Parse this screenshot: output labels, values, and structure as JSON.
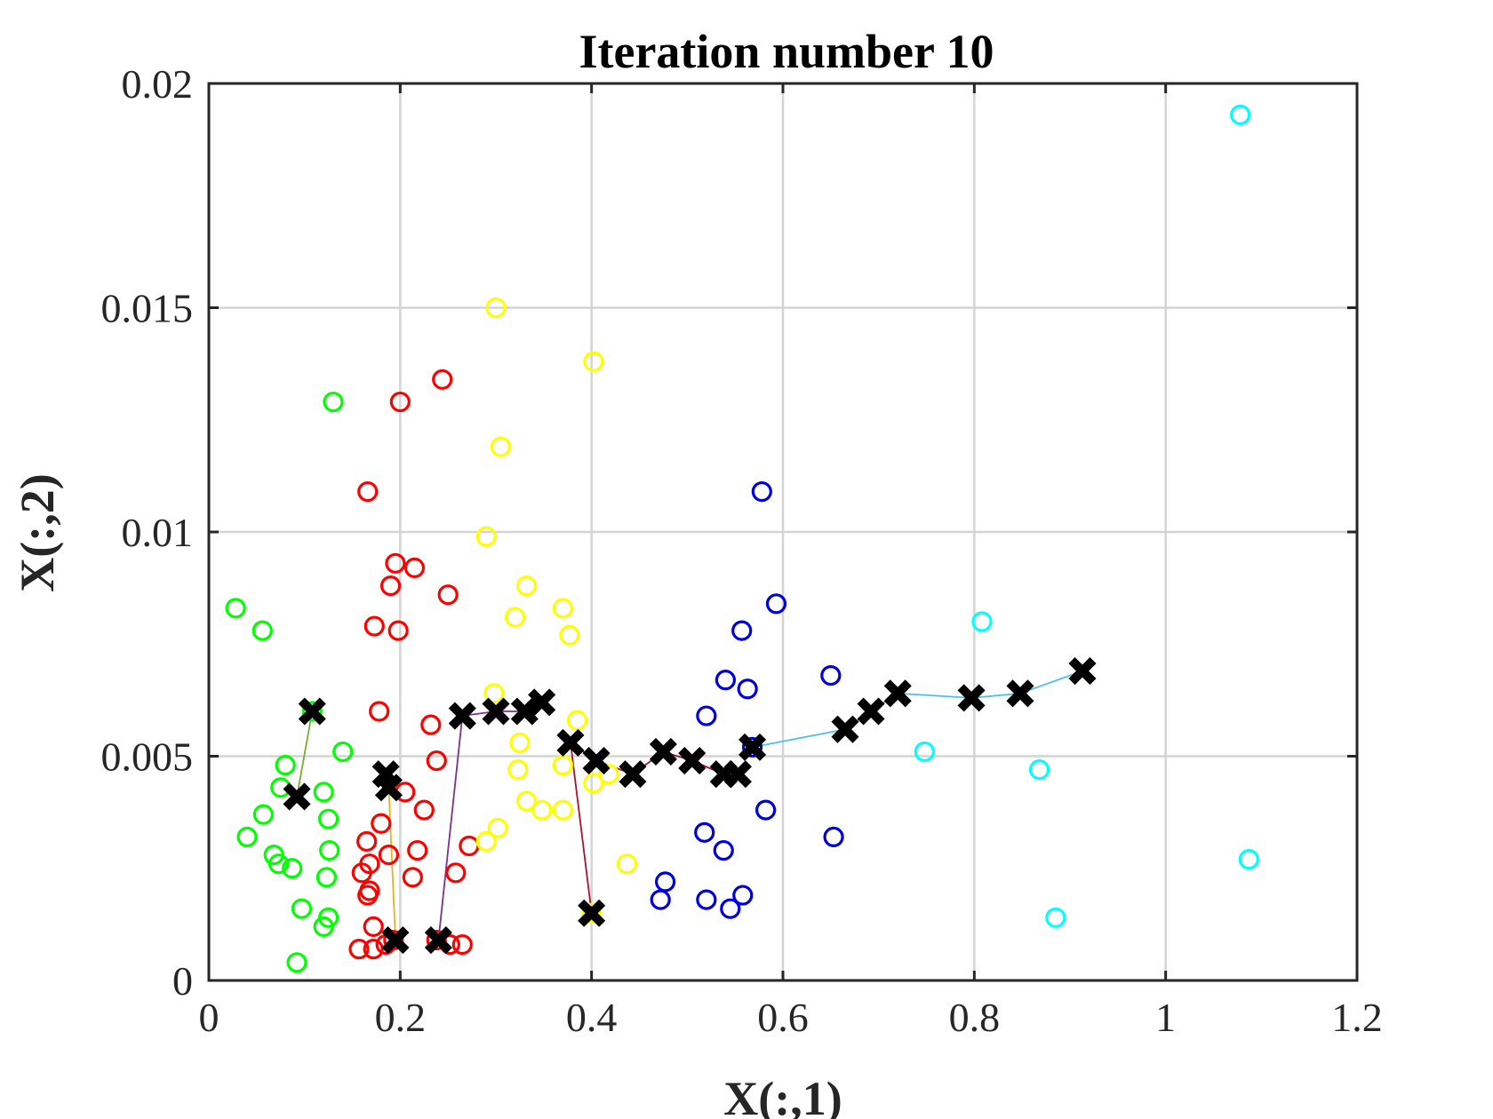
{
  "chart_data": {
    "type": "scatter",
    "title": "Iteration number 10",
    "xlabel": "X(:,1)",
    "ylabel": "X(:,2)",
    "xlim": [
      0,
      1.2
    ],
    "ylim": [
      0,
      0.02
    ],
    "xticks": [
      0,
      0.2,
      0.4,
      0.6,
      0.8,
      1,
      1.2
    ],
    "yticks": [
      0,
      0.005,
      0.01,
      0.015,
      0.02
    ],
    "xtick_labels": [
      "0",
      "0.2",
      "0.4",
      "0.6",
      "0.8",
      "1",
      "1.2"
    ],
    "ytick_labels": [
      "0",
      "0.005",
      "0.01",
      "0.015",
      "0.02"
    ],
    "grid": true,
    "marker": "o",
    "clusters": [
      {
        "color": "#00ff00",
        "points": [
          [
            0.028,
            0.0083
          ],
          [
            0.056,
            0.0078
          ],
          [
            0.13,
            0.0129
          ],
          [
            0.14,
            0.0051
          ],
          [
            0.08,
            0.0048
          ],
          [
            0.075,
            0.0043
          ],
          [
            0.12,
            0.0042
          ],
          [
            0.125,
            0.0036
          ],
          [
            0.057,
            0.0037
          ],
          [
            0.04,
            0.0032
          ],
          [
            0.068,
            0.0028
          ],
          [
            0.073,
            0.0026
          ],
          [
            0.087,
            0.0025
          ],
          [
            0.126,
            0.0029
          ],
          [
            0.123,
            0.0023
          ],
          [
            0.097,
            0.0016
          ],
          [
            0.125,
            0.0014
          ],
          [
            0.12,
            0.0012
          ],
          [
            0.092,
            0.0004
          ],
          [
            0.108,
            0.006
          ]
        ],
        "centroid_path": [
          [
            0.108,
            0.006
          ],
          [
            0.092,
            0.0041
          ]
        ]
      },
      {
        "color": "#ff0000",
        "points": [
          [
            0.244,
            0.0134
          ],
          [
            0.2,
            0.0129
          ],
          [
            0.166,
            0.0109
          ],
          [
            0.195,
            0.0093
          ],
          [
            0.215,
            0.0092
          ],
          [
            0.19,
            0.0088
          ],
          [
            0.25,
            0.0086
          ],
          [
            0.173,
            0.0079
          ],
          [
            0.198,
            0.0078
          ],
          [
            0.178,
            0.006
          ],
          [
            0.232,
            0.0057
          ],
          [
            0.238,
            0.0049
          ],
          [
            0.205,
            0.0042
          ],
          [
            0.225,
            0.0038
          ],
          [
            0.18,
            0.0035
          ],
          [
            0.165,
            0.0031
          ],
          [
            0.218,
            0.0029
          ],
          [
            0.272,
            0.003
          ],
          [
            0.188,
            0.0028
          ],
          [
            0.16,
            0.0024
          ],
          [
            0.168,
            0.0026
          ],
          [
            0.258,
            0.0024
          ],
          [
            0.213,
            0.0023
          ],
          [
            0.168,
            0.002
          ],
          [
            0.172,
            0.0012
          ],
          [
            0.157,
            0.0007
          ],
          [
            0.172,
            0.0007
          ],
          [
            0.185,
            0.0008
          ],
          [
            0.193,
            0.0009
          ],
          [
            0.238,
            0.0009
          ],
          [
            0.252,
            0.0008
          ],
          [
            0.265,
            0.0008
          ],
          [
            0.166,
            0.0019
          ]
        ],
        "centroid_path": [
          [
            0.195,
            0.0009
          ],
          [
            0.188,
            0.0043
          ],
          [
            0.185,
            0.0046
          ]
        ]
      },
      {
        "color": "#ffff00",
        "points": [
          [
            0.3,
            0.015
          ],
          [
            0.402,
            0.0138
          ],
          [
            0.305,
            0.0119
          ],
          [
            0.29,
            0.0099
          ],
          [
            0.332,
            0.0088
          ],
          [
            0.32,
            0.0081
          ],
          [
            0.37,
            0.0083
          ],
          [
            0.377,
            0.0077
          ],
          [
            0.298,
            0.0064
          ],
          [
            0.385,
            0.0058
          ],
          [
            0.325,
            0.0053
          ],
          [
            0.323,
            0.0047
          ],
          [
            0.37,
            0.0048
          ],
          [
            0.402,
            0.0044
          ],
          [
            0.418,
            0.0046
          ],
          [
            0.332,
            0.004
          ],
          [
            0.348,
            0.0038
          ],
          [
            0.37,
            0.0038
          ],
          [
            0.302,
            0.0034
          ],
          [
            0.29,
            0.0031
          ],
          [
            0.437,
            0.0026
          ],
          [
            0.4,
            0.0015
          ]
        ],
        "centroid_path": [
          [
            0.24,
            0.0009
          ],
          [
            0.265,
            0.0059
          ],
          [
            0.3,
            0.006
          ],
          [
            0.33,
            0.006
          ],
          [
            0.348,
            0.0062
          ]
        ]
      },
      {
        "color": "#0000dd",
        "points": [
          [
            0.578,
            0.0109
          ],
          [
            0.593,
            0.0084
          ],
          [
            0.557,
            0.0078
          ],
          [
            0.54,
            0.0067
          ],
          [
            0.563,
            0.0065
          ],
          [
            0.52,
            0.0059
          ],
          [
            0.65,
            0.0068
          ],
          [
            0.568,
            0.0052
          ],
          [
            0.582,
            0.0038
          ],
          [
            0.518,
            0.0033
          ],
          [
            0.538,
            0.0029
          ],
          [
            0.653,
            0.0032
          ],
          [
            0.477,
            0.0022
          ],
          [
            0.472,
            0.0018
          ],
          [
            0.52,
            0.0018
          ],
          [
            0.558,
            0.0019
          ],
          [
            0.545,
            0.0016
          ]
        ],
        "centroid_path": [
          [
            0.4,
            0.0015
          ],
          [
            0.378,
            0.0053
          ],
          [
            0.405,
            0.0049
          ],
          [
            0.443,
            0.0046
          ],
          [
            0.475,
            0.0051
          ],
          [
            0.505,
            0.0049
          ],
          [
            0.538,
            0.0046
          ],
          [
            0.553,
            0.0046
          ]
        ]
      },
      {
        "color": "#00ffff",
        "points": [
          [
            1.078,
            0.0193
          ],
          [
            0.808,
            0.008
          ],
          [
            0.748,
            0.0051
          ],
          [
            0.868,
            0.0047
          ],
          [
            1.087,
            0.0027
          ],
          [
            0.885,
            0.0014
          ]
        ],
        "centroid_path": [
          [
            0.568,
            0.0052
          ],
          [
            0.665,
            0.0056
          ],
          [
            0.692,
            0.006
          ],
          [
            0.72,
            0.0064
          ],
          [
            0.797,
            0.0063
          ],
          [
            0.848,
            0.0064
          ],
          [
            0.913,
            0.0069
          ]
        ]
      }
    ],
    "path_colors": [
      "#77ac30",
      "#edb120",
      "#7e2f8e",
      "#a2142f",
      "#4dbeee"
    ],
    "centroid_color": "#000000"
  }
}
